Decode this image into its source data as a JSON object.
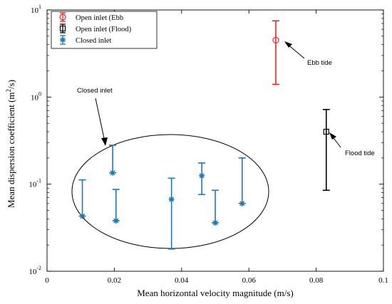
{
  "chart_data": {
    "type": "scatter",
    "xlabel": "Mean horizontal velocity magnitude (m/s)",
    "ylabel": "Mean dispersion coefficient (m",
    "ylabel_tail": "2",
    "ylabel_unit_fragment": "/s)",
    "y_scale": "log",
    "xlim": [
      0,
      0.1
    ],
    "ylim": [
      0.01,
      10
    ],
    "x_ticks": [
      0,
      0.02,
      0.04,
      0.06,
      0.08,
      0.1
    ],
    "x_tick_labels": [
      "0",
      "0.02",
      "0.04",
      "0.06",
      "0.08",
      "0.1"
    ],
    "y_ticks": [
      {
        "value": 0.01,
        "base": "10",
        "exp": "-2"
      },
      {
        "value": 0.1,
        "base": "10",
        "exp": "-1"
      },
      {
        "value": 1,
        "base": "10",
        "exp": "0"
      },
      {
        "value": 10,
        "base": "10",
        "exp": "1"
      }
    ],
    "legend_position": "top-left",
    "legend": [
      {
        "label": "Open inlet (Ebb",
        "marker": "circle",
        "color": "#e8262c"
      },
      {
        "label": "Open inlet (Flood)",
        "marker": "square",
        "color": "#000000"
      },
      {
        "label": "Closed inlet",
        "marker": "asterisk",
        "color": "#1f77b4"
      }
    ],
    "series": [
      {
        "name": "Open inlet (Ebb",
        "marker": "circle",
        "color": "#e8262c",
        "points": [
          {
            "x": 0.068,
            "y": 4.5,
            "ylo": 1.4,
            "yhi": 7.5
          }
        ]
      },
      {
        "name": "Open inlet (Flood)",
        "marker": "square",
        "color": "#000000",
        "points": [
          {
            "x": 0.083,
            "y": 0.4,
            "ylo": 0.085,
            "yhi": 0.72
          }
        ]
      },
      {
        "name": "Closed inlet",
        "marker": "asterisk",
        "color": "#1f77b4",
        "points": [
          {
            "x": 0.0105,
            "y": 0.043,
            "ylo": 0.043,
            "yhi": 0.112
          },
          {
            "x": 0.0195,
            "y": 0.135,
            "ylo": 0.135,
            "yhi": 0.28
          },
          {
            "x": 0.0205,
            "y": 0.038,
            "ylo": 0.038,
            "yhi": 0.087
          },
          {
            "x": 0.037,
            "y": 0.067,
            "ylo": 0.018,
            "yhi": 0.117
          },
          {
            "x": 0.046,
            "y": 0.125,
            "ylo": 0.076,
            "yhi": 0.175
          },
          {
            "x": 0.05,
            "y": 0.036,
            "ylo": 0.036,
            "yhi": 0.085
          },
          {
            "x": 0.058,
            "y": 0.06,
            "ylo": 0.06,
            "yhi": 0.2
          }
        ]
      }
    ],
    "annotations": [
      {
        "text": "Ebb tide",
        "target_series": "Open inlet (Ebb"
      },
      {
        "text": "Flood tide",
        "target_series": "Open inlet (Flood)"
      },
      {
        "text": "Closed inlet",
        "target_series": "Closed inlet"
      }
    ],
    "grid": false
  }
}
